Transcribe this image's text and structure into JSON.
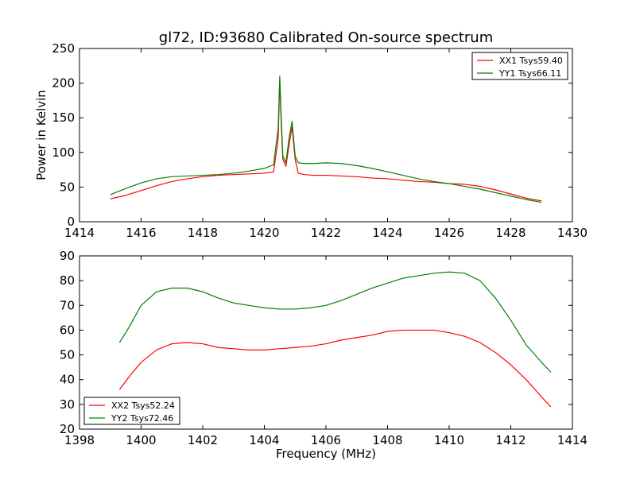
{
  "figure": {
    "title": "gl72, ID:93680 Calibrated On-source spectrum"
  },
  "chart_data": [
    {
      "type": "line",
      "title": "gl72, ID:93680 Calibrated On-source spectrum",
      "xlabel": "",
      "ylabel": "Power in Kelvin",
      "xlim": [
        1414,
        1430
      ],
      "ylim": [
        0,
        250
      ],
      "xticks": [
        1414,
        1416,
        1418,
        1420,
        1422,
        1424,
        1426,
        1428,
        1430
      ],
      "yticks": [
        0,
        50,
        100,
        150,
        200,
        250
      ],
      "grid": false,
      "legend_position": "top-right",
      "series": [
        {
          "name": "XX1 Tsys59.40",
          "color": "#ff0000",
          "x": [
            1415.0,
            1415.5,
            1416.0,
            1416.5,
            1417.0,
            1417.5,
            1418.0,
            1418.5,
            1419.0,
            1419.5,
            1420.0,
            1420.3,
            1420.45,
            1420.5,
            1420.55,
            1420.6,
            1420.7,
            1420.8,
            1420.9,
            1421.0,
            1421.1,
            1421.3,
            1421.6,
            1422.0,
            1422.5,
            1423.0,
            1423.5,
            1424.0,
            1424.5,
            1425.0,
            1425.5,
            1426.0,
            1426.5,
            1427.0,
            1427.5,
            1428.0,
            1428.5,
            1429.0
          ],
          "y": [
            33,
            38,
            45,
            52,
            58,
            62,
            65,
            67,
            68,
            69,
            70,
            72,
            120,
            205,
            140,
            90,
            80,
            110,
            137,
            90,
            70,
            68,
            67,
            67,
            66,
            65,
            63,
            62,
            60,
            58,
            57,
            55,
            54,
            51,
            46,
            40,
            34,
            30
          ]
        },
        {
          "name": "YY1 Tsys66.11",
          "color": "#008000",
          "x": [
            1415.0,
            1415.5,
            1416.0,
            1416.5,
            1417.0,
            1417.5,
            1418.0,
            1418.5,
            1419.0,
            1419.5,
            1420.0,
            1420.3,
            1420.45,
            1420.5,
            1420.55,
            1420.6,
            1420.7,
            1420.8,
            1420.9,
            1421.0,
            1421.1,
            1421.3,
            1421.6,
            1422.0,
            1422.5,
            1423.0,
            1423.5,
            1424.0,
            1424.5,
            1425.0,
            1425.5,
            1426.0,
            1426.5,
            1427.0,
            1427.5,
            1428.0,
            1428.5,
            1429.0
          ],
          "y": [
            39,
            48,
            56,
            62,
            65,
            66,
            67,
            68,
            70,
            73,
            77,
            82,
            135,
            210,
            150,
            95,
            85,
            120,
            145,
            95,
            85,
            84,
            84,
            85,
            84,
            81,
            77,
            72,
            67,
            62,
            58,
            55,
            51,
            47,
            42,
            37,
            32,
            28
          ]
        }
      ]
    },
    {
      "type": "line",
      "title": "",
      "xlabel": "Frequency (MHz)",
      "ylabel": "",
      "xlim": [
        1398,
        1414
      ],
      "ylim": [
        20,
        90
      ],
      "xticks": [
        1398,
        1400,
        1402,
        1404,
        1406,
        1408,
        1410,
        1412,
        1414
      ],
      "yticks": [
        20,
        30,
        40,
        50,
        60,
        70,
        80,
        90
      ],
      "grid": false,
      "legend_position": "bottom-left",
      "series": [
        {
          "name": "XX2 Tsys52.24",
          "color": "#ff0000",
          "x": [
            1399.3,
            1399.6,
            1400.0,
            1400.5,
            1401.0,
            1401.5,
            1402.0,
            1402.5,
            1403.0,
            1403.5,
            1404.0,
            1404.5,
            1405.0,
            1405.5,
            1406.0,
            1406.5,
            1407.0,
            1407.5,
            1408.0,
            1408.5,
            1409.0,
            1409.5,
            1410.0,
            1410.5,
            1411.0,
            1411.5,
            1412.0,
            1412.5,
            1413.0,
            1413.3
          ],
          "y": [
            36,
            41,
            47,
            52,
            54.5,
            55,
            54.5,
            53,
            52.5,
            52,
            52,
            52.5,
            53,
            53.5,
            54.5,
            56,
            57,
            58,
            59.5,
            60,
            60,
            60,
            59,
            57.5,
            55,
            51,
            46,
            40,
            33,
            29
          ]
        },
        {
          "name": "YY2 Tsys72.46",
          "color": "#008000",
          "x": [
            1399.3,
            1399.6,
            1400.0,
            1400.5,
            1401.0,
            1401.5,
            1402.0,
            1402.5,
            1403.0,
            1403.5,
            1404.0,
            1404.5,
            1405.0,
            1405.5,
            1406.0,
            1406.5,
            1407.0,
            1407.5,
            1408.0,
            1408.5,
            1409.0,
            1409.5,
            1410.0,
            1410.5,
            1411.0,
            1411.5,
            1412.0,
            1412.5,
            1413.0,
            1413.3
          ],
          "y": [
            55,
            61,
            70,
            75.5,
            77,
            77,
            75.5,
            73,
            71,
            70,
            69,
            68.5,
            68.5,
            69,
            70,
            72,
            74.5,
            77,
            79,
            81,
            82,
            83,
            83.5,
            83,
            80,
            73,
            64,
            54,
            47,
            43
          ]
        }
      ]
    }
  ]
}
